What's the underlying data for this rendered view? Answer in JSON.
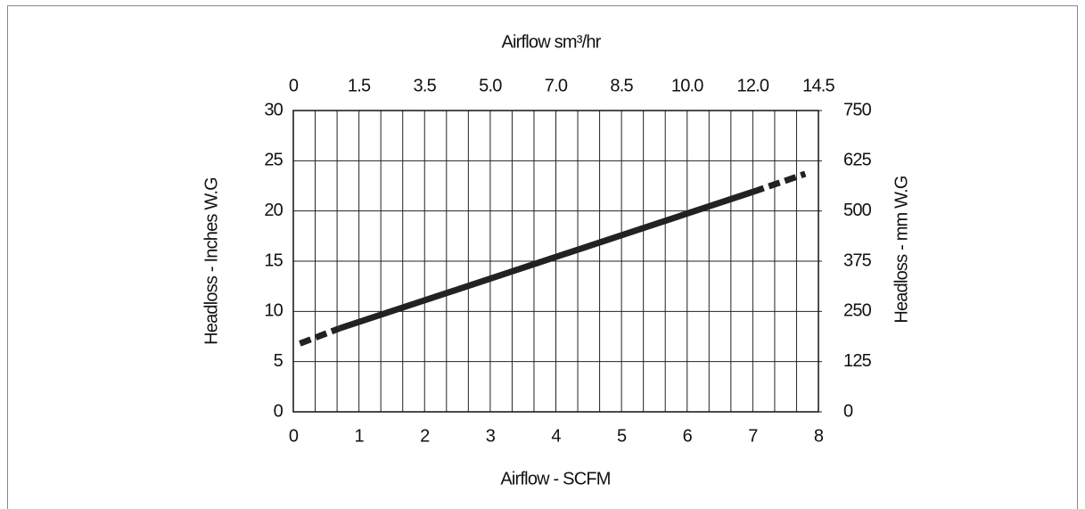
{
  "chart_data": {
    "type": "line",
    "title": "Airflow sm³/hr",
    "x_label": "Airflow - SCFM",
    "y_label": "Headloss - Inches W.G",
    "y2_label": "Headloss - mm W.G",
    "xlim": [
      0,
      8
    ],
    "xticks": [
      0,
      1,
      2,
      3,
      4,
      5,
      6,
      7,
      8
    ],
    "x2_tick_labels": [
      "0",
      "1.5",
      "3.5",
      "5.0",
      "7.0",
      "8.5",
      "10.0",
      "12.0",
      "14.5"
    ],
    "ylim": [
      0,
      30
    ],
    "yticks": [
      0,
      5,
      10,
      15,
      20,
      25,
      30
    ],
    "y2lim": [
      0,
      750
    ],
    "y2ticks": [
      0,
      125,
      250,
      375,
      500,
      625,
      750
    ],
    "x_minor_divisions": 3,
    "grid": true,
    "series": [
      {
        "color": "#222222",
        "dashed": true,
        "x": [
          0.1,
          0.7
        ],
        "values": [
          6.8,
          8.3
        ]
      },
      {
        "color": "#222222",
        "dashed": false,
        "x": [
          0.7,
          7.0
        ],
        "values": [
          8.3,
          21.9
        ]
      },
      {
        "color": "#222222",
        "dashed": true,
        "x": [
          7.0,
          7.8
        ],
        "values": [
          21.9,
          23.7
        ]
      }
    ]
  }
}
